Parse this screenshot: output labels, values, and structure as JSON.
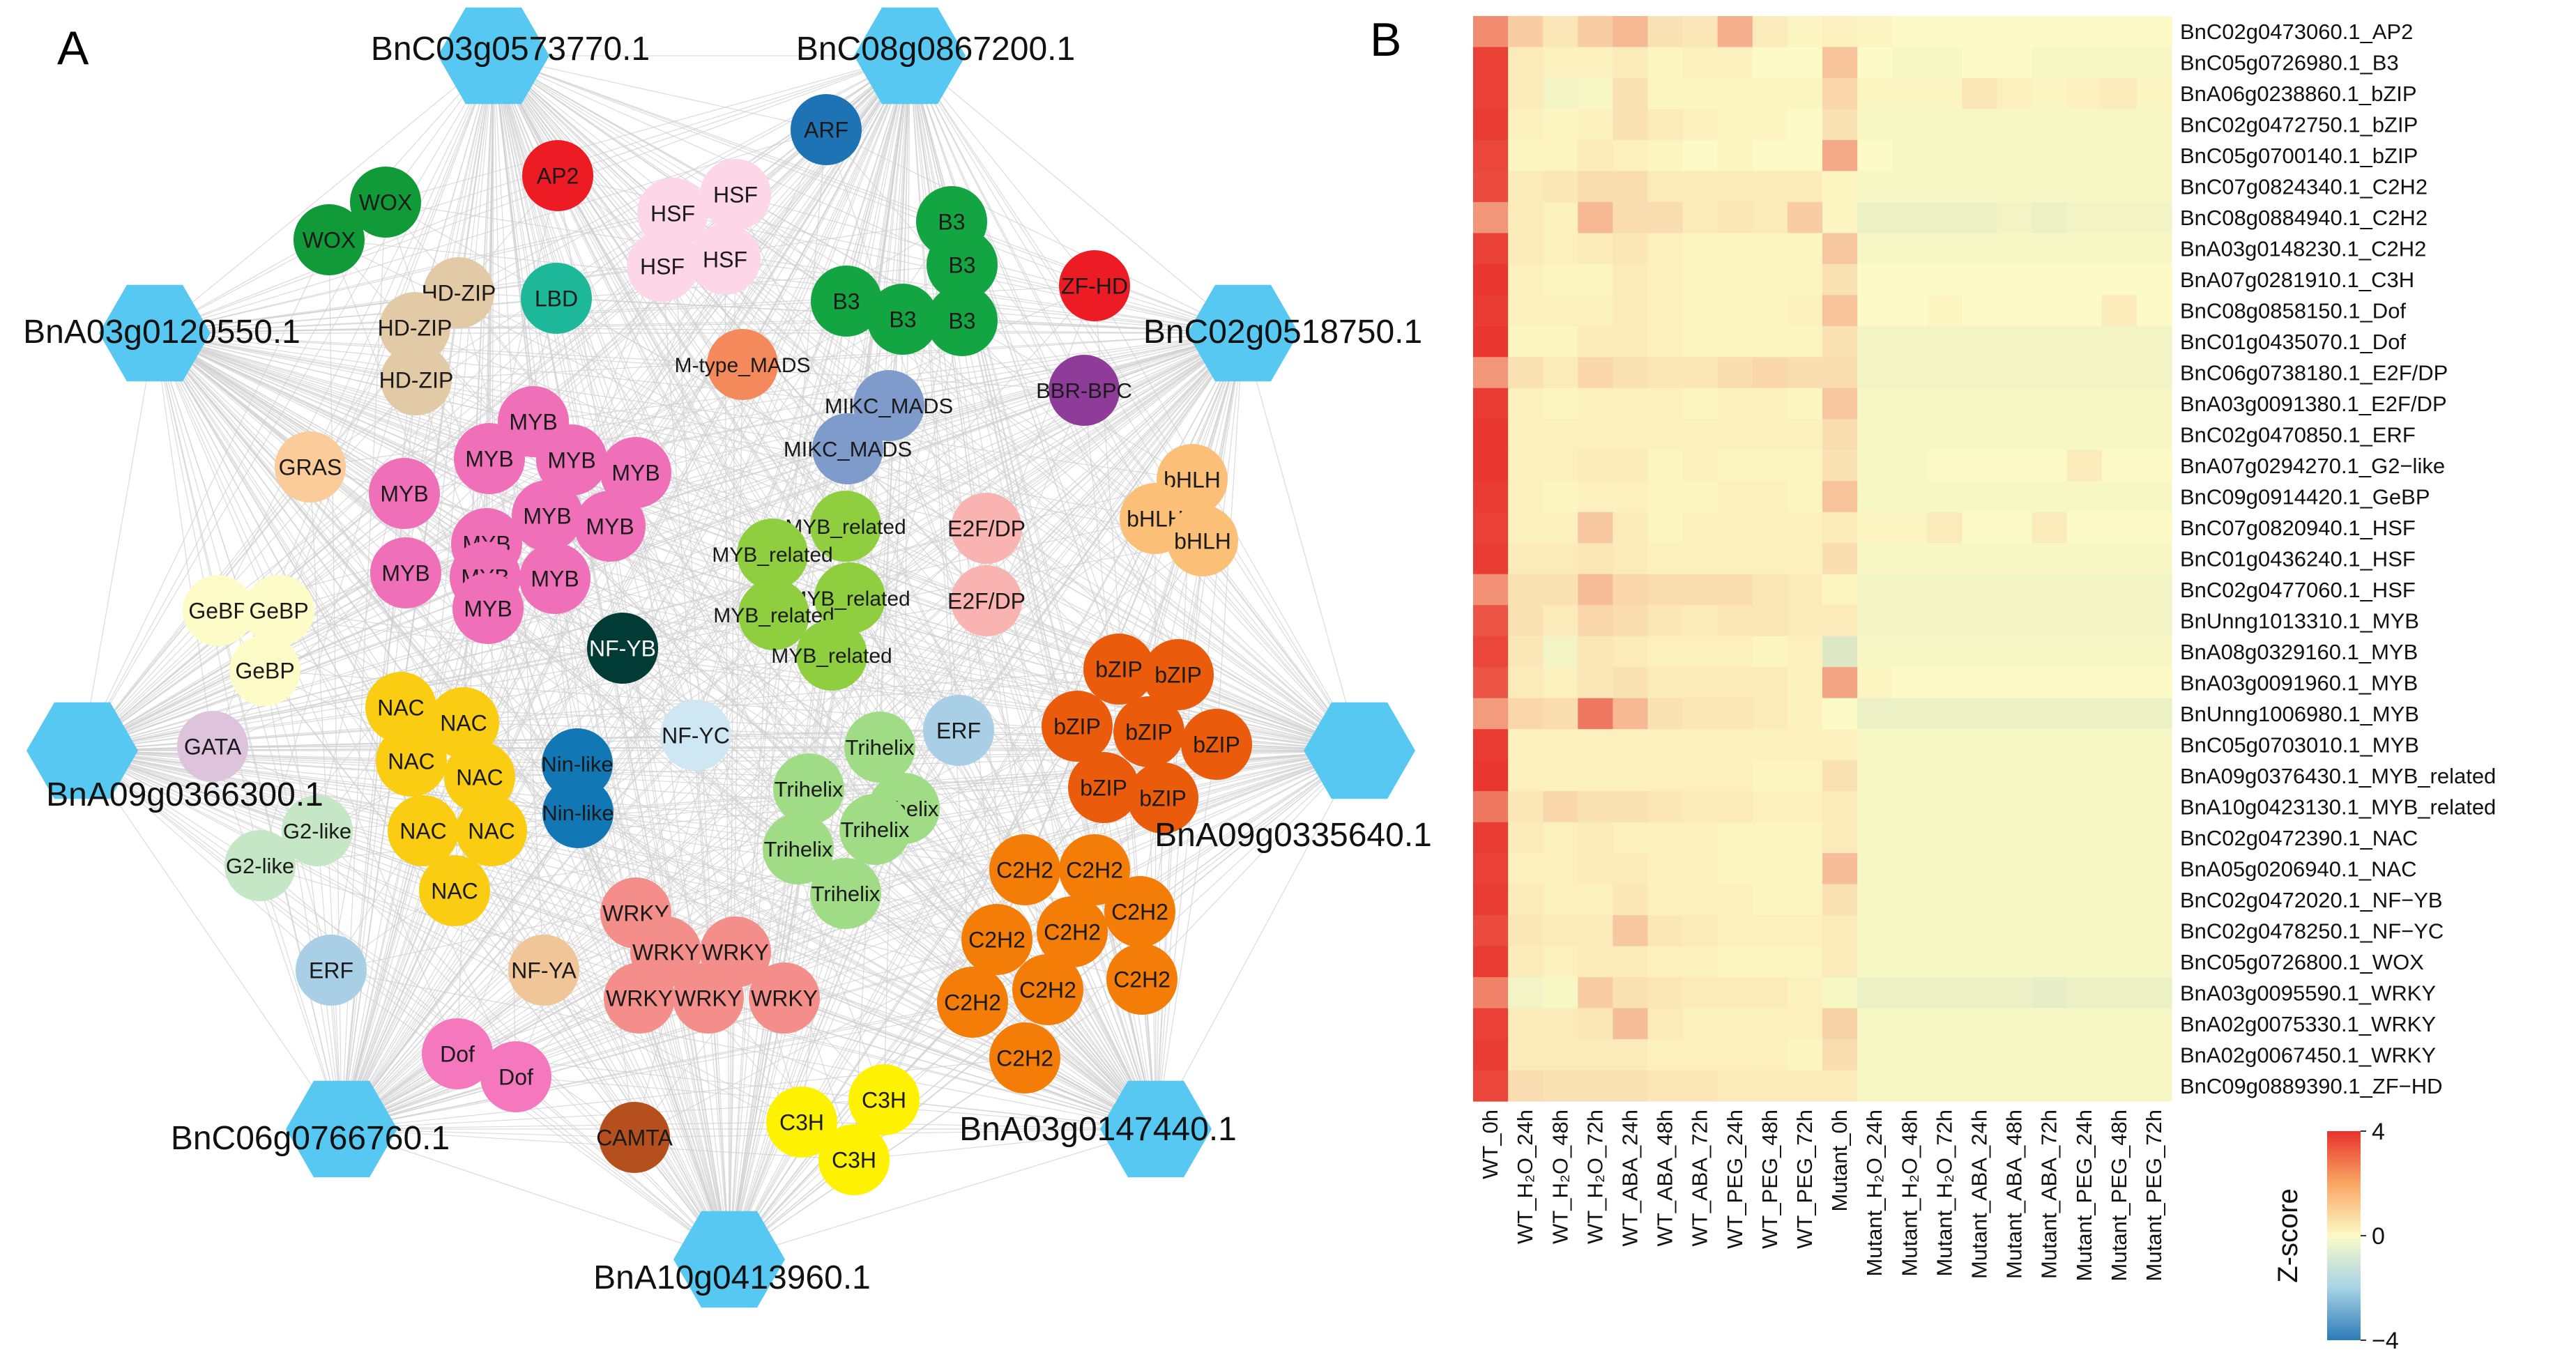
{
  "panels": {
    "a": {
      "label": "A"
    },
    "b": {
      "label": "B"
    }
  },
  "network": {
    "hubs": [
      {
        "label": "BnC03g0573770.1"
      },
      {
        "label": "BnC08g0867200.1"
      },
      {
        "label": "BnA03g0120550.1"
      },
      {
        "label": "BnC02g0518750.1"
      },
      {
        "label": "BnA09g0366300.1"
      },
      {
        "label": "BnA09g0335640.1"
      },
      {
        "label": "BnC06g0766760.1"
      },
      {
        "label": "BnA03g0147440.1"
      },
      {
        "label": "BnA10g0413960.1"
      }
    ],
    "nodes": [
      {
        "label": "AP2",
        "color": "#ed1c24"
      },
      {
        "label": "ARF",
        "color": "#1e73b4"
      },
      {
        "label": "WOX",
        "color": "#109a38"
      },
      {
        "label": "WOX",
        "color": "#109a38"
      },
      {
        "label": "HSF",
        "color": "#fdd7e8"
      },
      {
        "label": "HSF",
        "color": "#fdd7e8"
      },
      {
        "label": "HSF",
        "color": "#fdd7e8"
      },
      {
        "label": "HSF",
        "color": "#fdd7e8"
      },
      {
        "label": "B3",
        "color": "#13a541"
      },
      {
        "label": "B3",
        "color": "#13a541"
      },
      {
        "label": "B3",
        "color": "#13a541"
      },
      {
        "label": "B3",
        "color": "#13a541"
      },
      {
        "label": "B3",
        "color": "#13a541"
      },
      {
        "label": "ZF-HD",
        "color": "#ed1c24"
      },
      {
        "label": "LBD",
        "color": "#1db89a"
      },
      {
        "label": "HD-ZIP",
        "color": "#e3caa6"
      },
      {
        "label": "HD-ZIP",
        "color": "#e3caa6"
      },
      {
        "label": "HD-ZIP",
        "color": "#e3caa6"
      },
      {
        "label": "M-type_MADS",
        "color": "#f48a5c"
      },
      {
        "label": "BBR-BPC",
        "color": "#8e3b9a"
      },
      {
        "label": "MIKC_MADS",
        "color": "#7e9bcb"
      },
      {
        "label": "MIKC_MADS",
        "color": "#7e9bcb"
      },
      {
        "label": "GRAS",
        "color": "#fbcb99"
      },
      {
        "label": "MYB",
        "color": "#ef6fb8"
      },
      {
        "label": "MYB",
        "color": "#ef6fb8"
      },
      {
        "label": "MYB",
        "color": "#ef6fb8"
      },
      {
        "label": "MYB",
        "color": "#ef6fb8"
      },
      {
        "label": "MYB",
        "color": "#ef6fb8"
      },
      {
        "label": "MYB",
        "color": "#ef6fb8"
      },
      {
        "label": "MYB",
        "color": "#ef6fb8"
      },
      {
        "label": "MYB",
        "color": "#ef6fb8"
      },
      {
        "label": "MYB",
        "color": "#ef6fb8"
      },
      {
        "label": "MYB",
        "color": "#ef6fb8"
      },
      {
        "label": "MYB",
        "color": "#ef6fb8"
      },
      {
        "label": "MYB",
        "color": "#ef6fb8"
      },
      {
        "label": "MYB_related",
        "color": "#8fce3f"
      },
      {
        "label": "MYB_related",
        "color": "#8fce3f"
      },
      {
        "label": "MYB_related",
        "color": "#8fce3f"
      },
      {
        "label": "MYB_related",
        "color": "#8fce3f"
      },
      {
        "label": "MYB_related",
        "color": "#8fce3f"
      },
      {
        "label": "E2F/DP",
        "color": "#f9b3b0"
      },
      {
        "label": "E2F/DP",
        "color": "#f9b3b0"
      },
      {
        "label": "bHLH",
        "color": "#fbbf78"
      },
      {
        "label": "bHLH",
        "color": "#fbbf78"
      },
      {
        "label": "bHLH",
        "color": "#fbbf78"
      },
      {
        "label": "GeBP",
        "color": "#fdfbc8"
      },
      {
        "label": "GeBP",
        "color": "#fdfbc8"
      },
      {
        "label": "GeBP",
        "color": "#fdfbc8"
      },
      {
        "label": "NF-YB",
        "color": "#003b35"
      },
      {
        "label": "bZIP",
        "color": "#ea5b0c"
      },
      {
        "label": "bZIP",
        "color": "#ea5b0c"
      },
      {
        "label": "bZIP",
        "color": "#ea5b0c"
      },
      {
        "label": "bZIP",
        "color": "#ea5b0c"
      },
      {
        "label": "bZIP",
        "color": "#ea5b0c"
      },
      {
        "label": "bZIP",
        "color": "#ea5b0c"
      },
      {
        "label": "bZIP",
        "color": "#ea5b0c"
      },
      {
        "label": "GATA",
        "color": "#ddc4dc"
      },
      {
        "label": "NAC",
        "color": "#fbcd12"
      },
      {
        "label": "NAC",
        "color": "#fbcd12"
      },
      {
        "label": "NAC",
        "color": "#fbcd12"
      },
      {
        "label": "NAC",
        "color": "#fbcd12"
      },
      {
        "label": "NAC",
        "color": "#fbcd12"
      },
      {
        "label": "NAC",
        "color": "#fbcd12"
      },
      {
        "label": "NAC",
        "color": "#fbcd12"
      },
      {
        "label": "Nin-like",
        "color": "#1277b5"
      },
      {
        "label": "Nin-like",
        "color": "#1277b5"
      },
      {
        "label": "NF-YC",
        "color": "#cfe6f3"
      },
      {
        "label": "ERF",
        "color": "#a9cfe6"
      },
      {
        "label": "Trihelix",
        "color": "#9fdc85"
      },
      {
        "label": "Trihelix",
        "color": "#9fdc85"
      },
      {
        "label": "Trihelix",
        "color": "#9fdc85"
      },
      {
        "label": "Trihelix",
        "color": "#9fdc85"
      },
      {
        "label": "Trihelix",
        "color": "#9fdc85"
      },
      {
        "label": "Trihelix",
        "color": "#9fdc85"
      },
      {
        "label": "G2-like",
        "color": "#c5e7c6"
      },
      {
        "label": "G2-like",
        "color": "#c5e7c6"
      },
      {
        "label": "C2H2",
        "color": "#f47d07"
      },
      {
        "label": "C2H2",
        "color": "#f47d07"
      },
      {
        "label": "C2H2",
        "color": "#f47d07"
      },
      {
        "label": "C2H2",
        "color": "#f47d07"
      },
      {
        "label": "C2H2",
        "color": "#f47d07"
      },
      {
        "label": "C2H2",
        "color": "#f47d07"
      },
      {
        "label": "C2H2",
        "color": "#f47d07"
      },
      {
        "label": "C2H2",
        "color": "#f47d07"
      },
      {
        "label": "C2H2",
        "color": "#f47d07"
      },
      {
        "label": "WRKY",
        "color": "#f48e8b"
      },
      {
        "label": "WRKY",
        "color": "#f48e8b"
      },
      {
        "label": "WRKY",
        "color": "#f48e8b"
      },
      {
        "label": "WRKY",
        "color": "#f48e8b"
      },
      {
        "label": "WRKY",
        "color": "#f48e8b"
      },
      {
        "label": "WRKY",
        "color": "#f48e8b"
      },
      {
        "label": "ERF",
        "color": "#a9cfe6"
      },
      {
        "label": "NF-YA",
        "color": "#f0c698"
      },
      {
        "label": "Dof",
        "color": "#f578bf"
      },
      {
        "label": "Dof",
        "color": "#f578bf"
      },
      {
        "label": "CAMTA",
        "color": "#b5501e"
      },
      {
        "label": "C3H",
        "color": "#fff200"
      },
      {
        "label": "C3H",
        "color": "#fff200"
      },
      {
        "label": "C3H",
        "color": "#fff200"
      }
    ]
  },
  "heatmap": {
    "columns": [
      "WT_0h",
      "WT_H₂O_24h",
      "WT_H₂O_48h",
      "WT_H₂O_72h",
      "WT_ABA_24h",
      "WT_ABA_48h",
      "WT_ABA_72h",
      "WT_PEG_24h",
      "WT_PEG_48h",
      "WT_PEG_72h",
      "Mutant_0h",
      "Mutant_H₂O_24h",
      "Mutant_H₂O_48h",
      "Mutant_H₂O_72h",
      "Mutant_ABA_24h",
      "Mutant_ABA_48h",
      "Mutant_ABA_72h",
      "Mutant_PEG_24h",
      "Mutant_PEG_48h",
      "Mutant_PEG_72h"
    ],
    "rows": [
      "BnC02g0473060.1_AP2",
      "BnC05g0726980.1_B3",
      "BnA06g0238860.1_bZIP",
      "BnC02g0472750.1_bZIP",
      "BnC05g0700140.1_bZIP",
      "BnC07g0824340.1_C2H2",
      "BnC08g0884940.1_C2H2",
      "BnA03g0148230.1_C2H2",
      "BnA07g0281910.1_C3H",
      "BnC08g0858150.1_Dof",
      "BnC01g0435070.1_Dof",
      "BnC06g0738180.1_E2F/DP",
      "BnA03g0091380.1_E2F/DP",
      "BnC02g0470850.1_ERF",
      "BnA07g0294270.1_G2−like",
      "BnC09g0914420.1_GeBP",
      "BnC07g0820940.1_HSF",
      "BnC01g0436240.1_HSF",
      "BnC02g0477060.1_HSF",
      "BnUnng1013310.1_MYB",
      "BnA08g0329160.1_MYB",
      "BnA03g0091960.1_MYB",
      "BnUnng1006980.1_MYB",
      "BnC05g0703010.1_MYB",
      "BnA09g0376430.1_MYB_related",
      "BnA10g0423130.1_MYB_related",
      "BnC02g0472390.1_NAC",
      "BnA05g0206940.1_NAC",
      "BnC02g0472020.1_NF−YB",
      "BnC02g0478250.1_NF−YC",
      "BnC05g0726800.1_WOX",
      "BnA03g0095590.1_WRKY",
      "BnA02g0075330.1_WRKY",
      "BnA02g0067450.1_WRKY",
      "BnC09g0889390.1_ZF−HD"
    ],
    "legend": {
      "title": "Z-score",
      "max_label": "4",
      "mid_label": "0",
      "min_label": "−4"
    },
    "colors": {
      "high": "#e8322b",
      "mid": "#fcfac6",
      "low": "#2c7bb6"
    }
  },
  "chart_data": {
    "type": "heatmap",
    "title": "",
    "value_label": "Z-score",
    "zlim": [
      -4,
      4
    ],
    "columns": [
      "WT_0h",
      "WT_H2O_24h",
      "WT_H2O_48h",
      "WT_H2O_72h",
      "WT_ABA_24h",
      "WT_ABA_48h",
      "WT_ABA_72h",
      "WT_PEG_24h",
      "WT_PEG_48h",
      "WT_PEG_72h",
      "Mutant_0h",
      "Mutant_H2O_24h",
      "Mutant_H2O_48h",
      "Mutant_H2O_72h",
      "Mutant_ABA_24h",
      "Mutant_ABA_48h",
      "Mutant_ABA_72h",
      "Mutant_PEG_24h",
      "Mutant_PEG_48h",
      "Mutant_PEG_72h"
    ],
    "values": [
      [
        2.2,
        0.9,
        0.4,
        0.9,
        1.3,
        0.5,
        0.4,
        1.5,
        0.3,
        0.1,
        0.2,
        0.1,
        0.0,
        0.0,
        0.0,
        0.0,
        0.0,
        0.0,
        0.0,
        0.0
      ],
      [
        3.7,
        0.3,
        0.2,
        0.2,
        0.3,
        0.1,
        0.2,
        0.2,
        0.0,
        0.0,
        1.1,
        0.0,
        -0.1,
        -0.1,
        0.0,
        0.0,
        -0.1,
        -0.1,
        -0.1,
        -0.1
      ],
      [
        3.7,
        0.3,
        -0.2,
        -0.1,
        0.5,
        0.1,
        0.1,
        0.1,
        0.1,
        0.1,
        0.7,
        0.1,
        0.1,
        0.1,
        0.4,
        0.2,
        0.1,
        0.2,
        0.3,
        0.1
      ],
      [
        3.8,
        0.2,
        0.1,
        0.2,
        0.5,
        0.3,
        0.2,
        0.1,
        0.1,
        0.0,
        0.5,
        -0.1,
        -0.1,
        -0.1,
        -0.1,
        -0.1,
        -0.1,
        -0.1,
        -0.1,
        -0.1
      ],
      [
        3.6,
        0.1,
        0.1,
        0.3,
        0.2,
        0.1,
        0.0,
        0.1,
        0.0,
        0.0,
        1.6,
        0.0,
        -0.1,
        -0.1,
        -0.1,
        -0.1,
        -0.1,
        -0.1,
        -0.1,
        -0.1
      ],
      [
        3.5,
        0.3,
        0.4,
        0.6,
        0.6,
        0.3,
        0.3,
        0.3,
        0.3,
        0.3,
        0.1,
        -0.1,
        -0.1,
        -0.1,
        -0.1,
        -0.1,
        -0.1,
        -0.1,
        -0.1,
        -0.1
      ],
      [
        2.0,
        0.3,
        0.2,
        1.3,
        0.6,
        0.6,
        0.3,
        0.4,
        0.3,
        0.9,
        0.1,
        -0.3,
        -0.3,
        -0.3,
        -0.3,
        -0.2,
        -0.3,
        -0.2,
        -0.2,
        -0.2
      ],
      [
        3.7,
        0.3,
        0.2,
        0.3,
        0.4,
        0.2,
        0.1,
        0.1,
        0.1,
        0.1,
        1.0,
        -0.1,
        -0.1,
        -0.1,
        -0.1,
        -0.1,
        -0.1,
        -0.1,
        -0.1,
        -0.1
      ],
      [
        3.9,
        0.2,
        0.1,
        0.1,
        0.3,
        0.2,
        0.1,
        0.1,
        0.1,
        0.1,
        0.5,
        0.0,
        0.0,
        0.0,
        0.0,
        0.0,
        0.0,
        0.0,
        0.0,
        0.0
      ],
      [
        3.8,
        0.2,
        0.2,
        0.2,
        0.3,
        0.2,
        0.1,
        0.1,
        0.1,
        0.2,
        1.1,
        0.0,
        0.0,
        0.1,
        0.0,
        0.0,
        0.0,
        0.0,
        0.3,
        0.0
      ],
      [
        3.9,
        0.1,
        0.1,
        0.3,
        0.3,
        0.2,
        0.1,
        0.1,
        0.1,
        0.1,
        0.5,
        -0.2,
        -0.2,
        -0.2,
        -0.2,
        -0.2,
        -0.2,
        -0.2,
        -0.2,
        -0.2
      ],
      [
        2.0,
        0.5,
        0.3,
        0.7,
        0.5,
        0.4,
        0.4,
        0.6,
        0.7,
        0.6,
        0.6,
        -0.2,
        -0.2,
        -0.2,
        -0.2,
        -0.2,
        -0.2,
        -0.2,
        -0.2,
        -0.2
      ],
      [
        3.8,
        0.2,
        0.1,
        0.2,
        0.2,
        0.2,
        0.1,
        0.2,
        0.2,
        0.1,
        1.0,
        -0.1,
        -0.1,
        -0.1,
        -0.1,
        -0.1,
        -0.1,
        -0.1,
        -0.1,
        -0.1
      ],
      [
        3.9,
        0.2,
        0.2,
        0.2,
        0.2,
        0.2,
        0.2,
        0.2,
        0.2,
        0.2,
        0.6,
        -0.1,
        -0.1,
        -0.1,
        -0.1,
        -0.1,
        -0.1,
        -0.1,
        -0.1,
        -0.1
      ],
      [
        3.9,
        0.2,
        0.2,
        0.3,
        0.3,
        0.1,
        0.2,
        0.1,
        0.1,
        0.1,
        0.5,
        -0.1,
        -0.1,
        0.0,
        0.0,
        0.0,
        0.0,
        0.3,
        0.0,
        0.0
      ],
      [
        3.8,
        0.2,
        0.1,
        0.2,
        0.2,
        0.1,
        0.1,
        0.2,
        0.2,
        0.1,
        1.1,
        -0.1,
        -0.1,
        -0.1,
        -0.1,
        -0.1,
        -0.1,
        -0.1,
        -0.1,
        -0.1
      ],
      [
        3.7,
        0.2,
        0.2,
        1.0,
        0.3,
        0.1,
        0.2,
        0.2,
        0.2,
        0.2,
        0.3,
        0.1,
        0.1,
        0.3,
        0.0,
        0.0,
        0.3,
        0.0,
        0.0,
        0.0
      ],
      [
        3.8,
        0.3,
        0.3,
        0.4,
        0.3,
        0.2,
        0.2,
        0.2,
        0.2,
        0.2,
        0.6,
        -0.1,
        -0.1,
        -0.1,
        -0.1,
        -0.1,
        -0.1,
        -0.1,
        -0.1,
        -0.1
      ],
      [
        2.1,
        0.5,
        0.5,
        1.2,
        0.7,
        0.6,
        0.6,
        0.6,
        0.4,
        0.3,
        0.1,
        -0.2,
        -0.2,
        -0.2,
        -0.2,
        -0.2,
        -0.2,
        -0.2,
        -0.2,
        -0.2
      ],
      [
        3.3,
        0.5,
        0.3,
        0.7,
        0.6,
        0.4,
        0.3,
        0.4,
        0.4,
        0.3,
        0.3,
        -0.2,
        -0.2,
        -0.2,
        -0.2,
        -0.2,
        -0.2,
        -0.2,
        -0.2,
        -0.2
      ],
      [
        3.6,
        0.4,
        -0.2,
        0.4,
        0.3,
        0.2,
        0.2,
        0.2,
        0.1,
        0.2,
        -0.6,
        -0.1,
        -0.1,
        -0.1,
        -0.1,
        -0.1,
        -0.1,
        -0.1,
        -0.1,
        -0.1
      ],
      [
        3.3,
        0.3,
        0.2,
        0.4,
        0.5,
        0.3,
        0.3,
        0.3,
        0.3,
        0.2,
        1.7,
        0.1,
        0.0,
        0.0,
        0.0,
        0.0,
        0.0,
        0.0,
        0.0,
        0.0
      ],
      [
        1.9,
        0.7,
        0.6,
        2.6,
        1.3,
        0.5,
        0.4,
        0.4,
        0.3,
        0.2,
        0.0,
        -0.3,
        -0.3,
        -0.3,
        -0.3,
        -0.3,
        -0.3,
        -0.3,
        -0.3,
        -0.3
      ],
      [
        3.8,
        0.2,
        0.2,
        0.2,
        0.2,
        0.2,
        0.2,
        0.2,
        0.2,
        0.2,
        0.2,
        -0.1,
        -0.1,
        -0.1,
        -0.1,
        -0.1,
        -0.1,
        -0.1,
        -0.1,
        -0.1
      ],
      [
        3.9,
        0.2,
        0.2,
        0.2,
        0.2,
        0.2,
        0.2,
        0.2,
        0.1,
        0.1,
        0.5,
        -0.1,
        -0.1,
        -0.1,
        -0.1,
        -0.1,
        -0.1,
        -0.1,
        -0.1,
        -0.1
      ],
      [
        2.6,
        0.4,
        0.7,
        0.5,
        0.5,
        0.4,
        0.3,
        0.3,
        0.2,
        0.2,
        0.3,
        -0.1,
        -0.1,
        -0.1,
        -0.1,
        -0.1,
        -0.1,
        -0.1,
        -0.1,
        -0.1
      ],
      [
        3.8,
        0.3,
        0.2,
        0.3,
        0.2,
        0.2,
        0.2,
        0.1,
        0.1,
        0.1,
        0.3,
        -0.1,
        -0.1,
        -0.1,
        -0.1,
        -0.1,
        -0.1,
        -0.1,
        -0.1,
        -0.1
      ],
      [
        3.7,
        0.2,
        0.2,
        0.3,
        0.3,
        0.2,
        0.2,
        0.1,
        0.1,
        0.1,
        1.2,
        -0.1,
        -0.1,
        -0.1,
        -0.1,
        -0.1,
        -0.1,
        -0.1,
        -0.1,
        -0.1
      ],
      [
        3.8,
        0.3,
        0.2,
        0.2,
        0.4,
        0.2,
        0.2,
        0.2,
        0.1,
        0.1,
        0.5,
        -0.1,
        -0.1,
        -0.1,
        -0.1,
        -0.1,
        -0.1,
        -0.1,
        -0.1,
        -0.1
      ],
      [
        3.5,
        0.4,
        0.3,
        0.3,
        1.0,
        0.4,
        0.3,
        0.2,
        0.2,
        0.2,
        0.3,
        -0.1,
        -0.1,
        -0.1,
        -0.1,
        -0.1,
        -0.1,
        -0.1,
        -0.1,
        -0.1
      ],
      [
        3.8,
        0.3,
        0.2,
        0.3,
        0.3,
        0.2,
        0.2,
        0.1,
        0.1,
        0.1,
        0.3,
        -0.1,
        -0.1,
        -0.1,
        -0.1,
        -0.1,
        -0.1,
        -0.1,
        -0.1,
        -0.1
      ],
      [
        2.4,
        -0.2,
        -0.1,
        0.9,
        0.5,
        0.4,
        0.3,
        0.3,
        0.3,
        0.2,
        -0.1,
        -0.3,
        -0.3,
        -0.3,
        -0.3,
        -0.3,
        -0.4,
        -0.3,
        -0.3,
        -0.3
      ],
      [
        3.7,
        0.3,
        0.3,
        0.4,
        1.2,
        0.3,
        0.2,
        0.2,
        0.2,
        0.2,
        0.8,
        -0.1,
        -0.1,
        -0.1,
        -0.1,
        -0.1,
        -0.1,
        -0.1,
        -0.1,
        -0.1
      ],
      [
        3.8,
        0.3,
        0.3,
        0.3,
        0.3,
        0.2,
        0.2,
        0.2,
        0.2,
        0.1,
        0.6,
        -0.1,
        -0.1,
        -0.1,
        -0.1,
        -0.1,
        -0.1,
        -0.1,
        -0.1,
        -0.1
      ],
      [
        3.6,
        0.6,
        0.5,
        0.5,
        0.5,
        0.4,
        0.4,
        0.3,
        0.3,
        0.3,
        0.3,
        -0.1,
        -0.1,
        -0.1,
        -0.1,
        -0.1,
        -0.1,
        -0.1,
        -0.1,
        -0.1
      ]
    ]
  }
}
